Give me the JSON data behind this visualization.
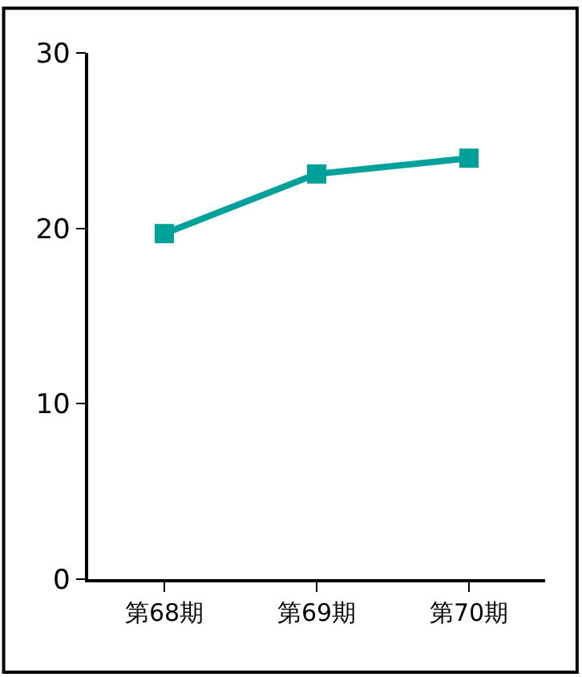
{
  "chart_data": {
    "type": "line",
    "categories": [
      "第68期",
      "第69期",
      "第70期"
    ],
    "series": [
      {
        "color": "#00a19a",
        "values": [
          19.7,
          23.1,
          24.0
        ]
      }
    ],
    "ylim": [
      0,
      30
    ],
    "yticks": [
      0,
      10,
      20,
      30
    ],
    "legend": false,
    "marker": "square",
    "line_style": "solid"
  }
}
